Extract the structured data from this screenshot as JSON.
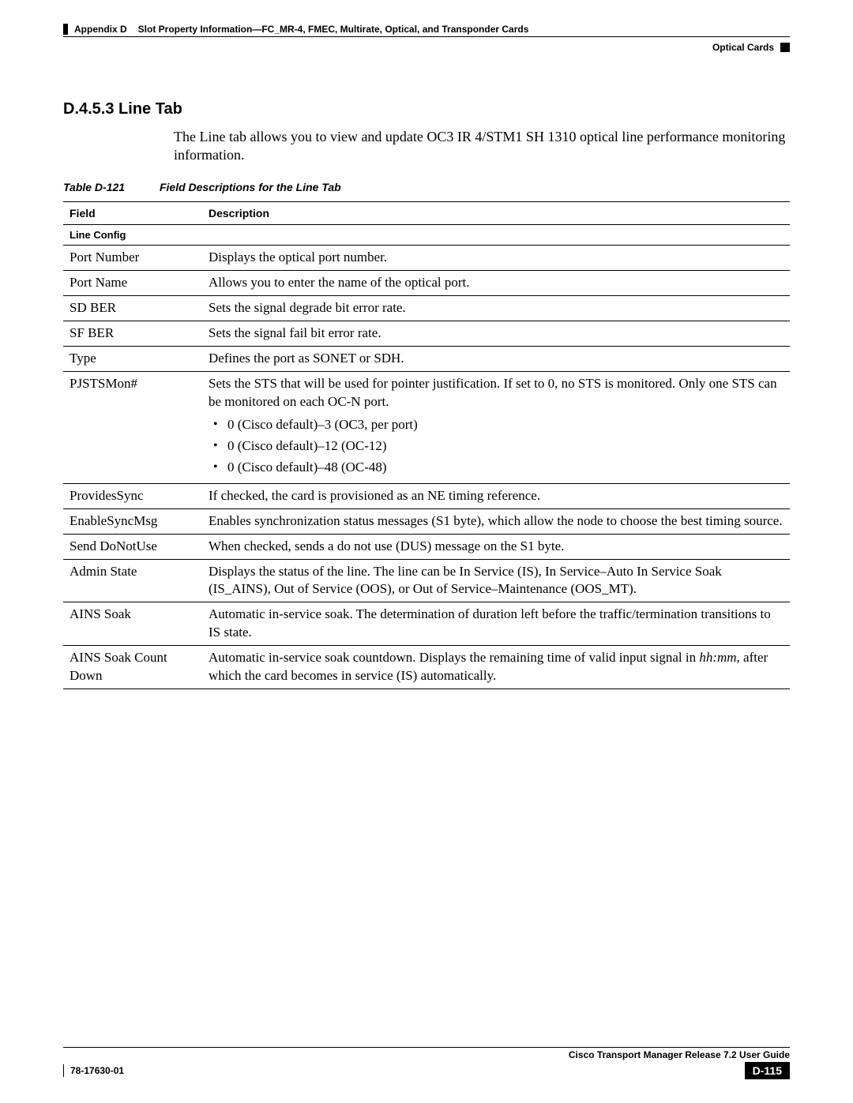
{
  "header": {
    "appendix": "Appendix D",
    "title": "Slot Property Information—FC_MR-4, FMEC, Multirate, Optical, and Transponder Cards",
    "section": "Optical Cards"
  },
  "section_heading": "D.4.5.3  Line Tab",
  "intro_text": "The Line tab allows you to view and update OC3 IR 4/STM1 SH 1310 optical line performance monitoring information.",
  "table_caption_num": "Table D-121",
  "table_caption_title": "Field Descriptions for the Line Tab",
  "col_field": "Field",
  "col_desc": "Description",
  "section_row": "Line Config",
  "rows": {
    "r0": {
      "f": "Port Number",
      "d": "Displays the optical port number."
    },
    "r1": {
      "f": "Port Name",
      "d": "Allows you to enter the name of the optical port."
    },
    "r2": {
      "f": "SD BER",
      "d": "Sets the signal degrade bit error rate."
    },
    "r3": {
      "f": "SF BER",
      "d": "Sets the signal fail bit error rate."
    },
    "r4": {
      "f": "Type",
      "d": "Defines the port as SONET or SDH."
    },
    "r5": {
      "f": "PJSTSMon#",
      "d": "Sets the STS that will be used for pointer justification. If set to 0, no STS is monitored. Only one STS can be monitored on each OC-N port.",
      "b0": "0 (Cisco default)–3 (OC3, per port)",
      "b1": "0 (Cisco default)–12 (OC-12)",
      "b2": "0 (Cisco default)–48 (OC-48)"
    },
    "r6": {
      "f": "ProvidesSync",
      "d": "If checked, the card is provisioned as an NE timing reference."
    },
    "r7": {
      "f": "EnableSyncMsg",
      "d": "Enables synchronization status messages (S1 byte), which allow the node to choose the best timing source."
    },
    "r8": {
      "f": "Send DoNotUse",
      "d": "When checked, sends a do not use (DUS) message on the S1 byte."
    },
    "r9": {
      "f": "Admin State",
      "d": "Displays the status of the line. The line can be In Service (IS), In Service–Auto In Service Soak (IS_AINS), Out of Service (OOS), or Out of Service–Maintenance (OOS_MT)."
    },
    "r10": {
      "f": "AINS Soak",
      "d": "Automatic in-service soak. The determination of duration left before the traffic/termination transitions to IS state."
    },
    "r11": {
      "f": "AINS Soak Count Down",
      "d_pre": "Automatic in-service soak countdown. Displays the remaining time of valid input signal in ",
      "d_it": "hh:mm",
      "d_post": ", after which the card becomes in service (IS) automatically."
    }
  },
  "footer": {
    "guide": "Cisco Transport Manager Release 7.2 User Guide",
    "docnum": "78-17630-01",
    "page": "D-115"
  }
}
